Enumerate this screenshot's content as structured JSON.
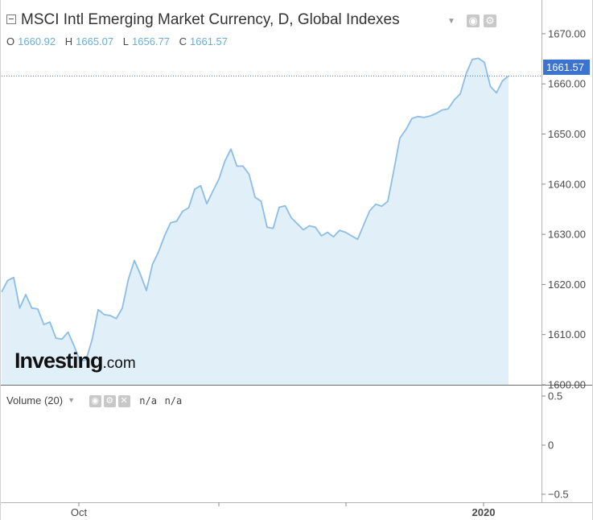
{
  "header": {
    "title": "MSCI Intl Emerging Market Currency, D, Global Indexes",
    "ohlc": [
      {
        "key": "O",
        "value": "1660.92"
      },
      {
        "key": "H",
        "value": "1665.07"
      },
      {
        "key": "L",
        "value": "1656.77"
      },
      {
        "key": "C",
        "value": "1661.57"
      }
    ],
    "icons": [
      "visibility-icon",
      "settings-icon"
    ]
  },
  "last_price_label": "1661.57",
  "logo": {
    "main": "Investing",
    "suffix": ".com"
  },
  "volume_pane": {
    "label": "Volume (20)",
    "value_1": "n/a",
    "value_2": "n/a",
    "icons": [
      "visibility-icon",
      "settings-icon",
      "close-icon"
    ],
    "y_ticks": [
      "0.5",
      "0",
      "−0.5"
    ]
  },
  "colors": {
    "line": "#8cbde6",
    "area": "#e1eff9",
    "accent": "#3b73d0",
    "ohlc_value": "#6aaed6"
  },
  "chart_data": {
    "type": "area",
    "y_ticks": [
      "1600.00",
      "1610.00",
      "1620.00",
      "1630.00",
      "1640.00",
      "1650.00",
      "1660.00",
      "1670.00"
    ],
    "x_tick_labels": [
      "Oct",
      "2020"
    ],
    "ylim": [
      1598.5,
      1673.5
    ],
    "last_value": 1661.57,
    "values": [
      1618.5,
      1620.8,
      1621.4,
      1615.3,
      1618.0,
      1615.3,
      1615.1,
      1612.0,
      1612.5,
      1609.3,
      1609.1,
      1610.5,
      1607.8,
      1604.7,
      1605.0,
      1609.0,
      1615.0,
      1614.0,
      1613.8,
      1613.2,
      1615.3,
      1621.0,
      1624.8,
      1622.0,
      1618.8,
      1624.0,
      1626.5,
      1629.7,
      1632.3,
      1632.6,
      1634.6,
      1635.3,
      1639.0,
      1639.7,
      1636.1,
      1638.6,
      1641.0,
      1644.6,
      1647.0,
      1643.6,
      1643.6,
      1642.0,
      1637.4,
      1636.6,
      1631.4,
      1631.2,
      1635.4,
      1635.7,
      1633.3,
      1632.1,
      1630.9,
      1631.7,
      1631.4,
      1629.7,
      1630.4,
      1629.5,
      1630.8,
      1630.4,
      1629.7,
      1629.0,
      1631.9,
      1634.7,
      1636.0,
      1635.6,
      1636.6,
      1642.8,
      1649.2,
      1650.9,
      1653.1,
      1653.5,
      1653.3,
      1653.6,
      1654.1,
      1654.8,
      1655.0,
      1656.8,
      1658.0,
      1662.1,
      1664.9,
      1665.1,
      1664.3,
      1659.5,
      1658.2,
      1660.6,
      1661.57
    ]
  }
}
